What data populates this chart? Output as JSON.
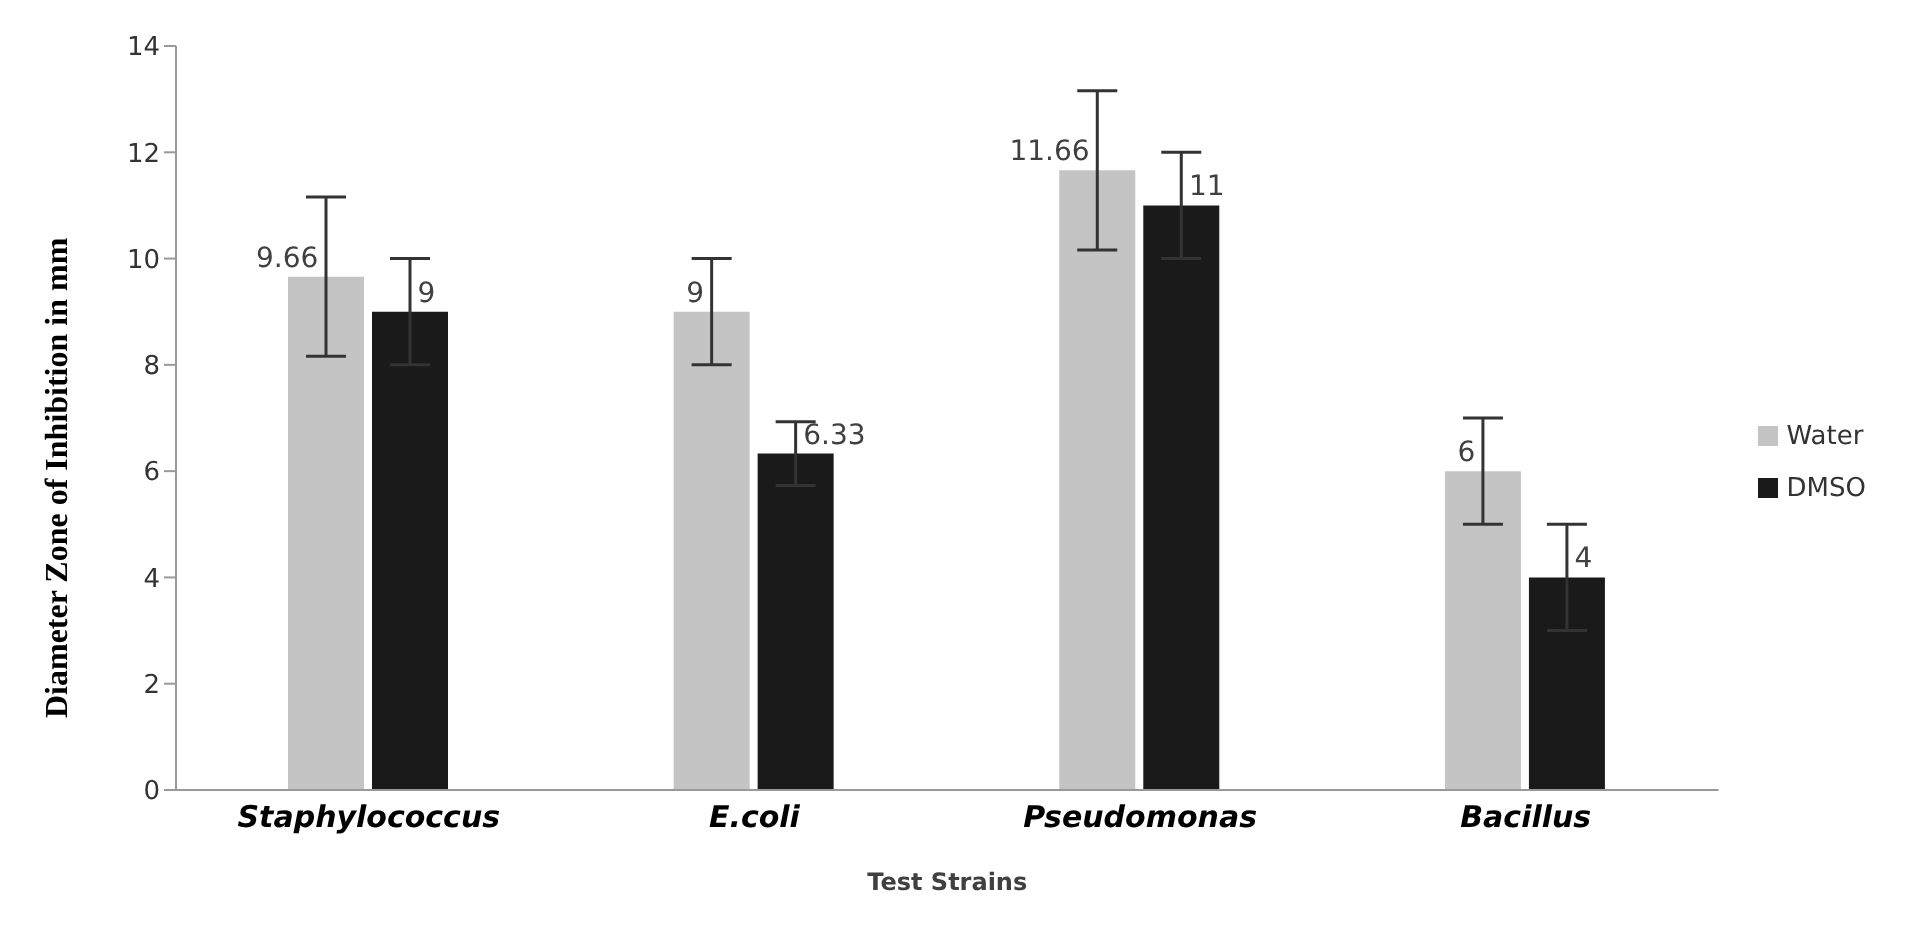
{
  "chart_data": {
    "type": "bar",
    "xlabel": "Test Strains",
    "ylabel": "Diameter Zone of Inhibition  in mm",
    "categories": [
      "Staphylococcus",
      "E.coli",
      "Pseudomonas",
      "Bacillus"
    ],
    "series": [
      {
        "name": "Water",
        "color": "#c4c4c4",
        "values": [
          9.66,
          9,
          11.66,
          6
        ],
        "errors": [
          1.5,
          1,
          1.5,
          1
        ]
      },
      {
        "name": "DMSO",
        "color": "#1a1a1a",
        "values": [
          9,
          6.33,
          11,
          4
        ],
        "errors": [
          1,
          0.6,
          1,
          1
        ]
      }
    ],
    "ylim": [
      0,
      14
    ],
    "yticks": [
      0,
      2,
      4,
      6,
      8,
      10,
      12,
      14
    ],
    "grid": false,
    "legend": "right",
    "data_labels": true
  }
}
